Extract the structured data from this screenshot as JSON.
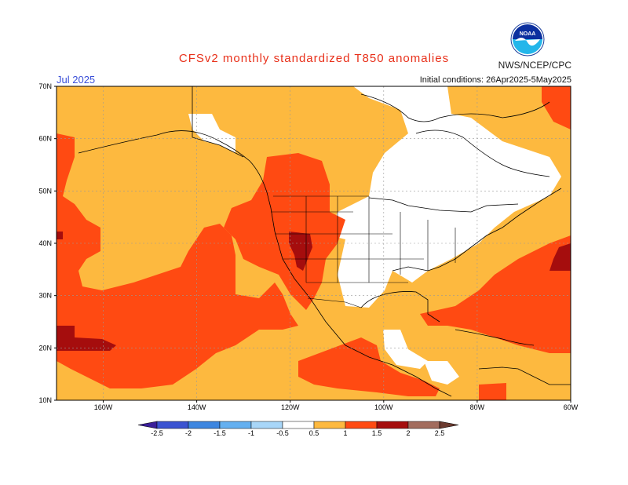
{
  "header": {
    "title": "CFSv2 monthly standardized T850 anomalies",
    "org": "NWS/NCEP/CPC",
    "month": "Jul 2025",
    "initial_conditions": "Initial conditions: 26Apr2025-5May2025",
    "logo_icon": "noaa-logo-icon"
  },
  "axes": {
    "lat_labels": [
      "70N",
      "60N",
      "50N",
      "40N",
      "30N",
      "20N",
      "10N"
    ],
    "lon_labels": [
      "160W",
      "140W",
      "120W",
      "100W",
      "80W",
      "60W"
    ]
  },
  "colorbar": {
    "labels": [
      "-2.5",
      "-2",
      "-1.5",
      "-1",
      "-0.5",
      "0.5",
      "1",
      "1.5",
      "2",
      "2.5"
    ],
    "colors": [
      "#3b1f9a",
      "#3b53d1",
      "#3d86e0",
      "#64b0f0",
      "#a8d6f8",
      "#ffffff",
      "#fdb93f",
      "#ff4a12",
      "#a50d0d",
      "#a26c5e",
      "#6b3a2f"
    ]
  },
  "map_colors": {
    "warm_05_1": "#fdb93f",
    "warm_1_15": "#ff4a12",
    "warm_15_2": "#a50d0d",
    "neutral": "#ffffff",
    "land_outline": "#000000"
  }
}
